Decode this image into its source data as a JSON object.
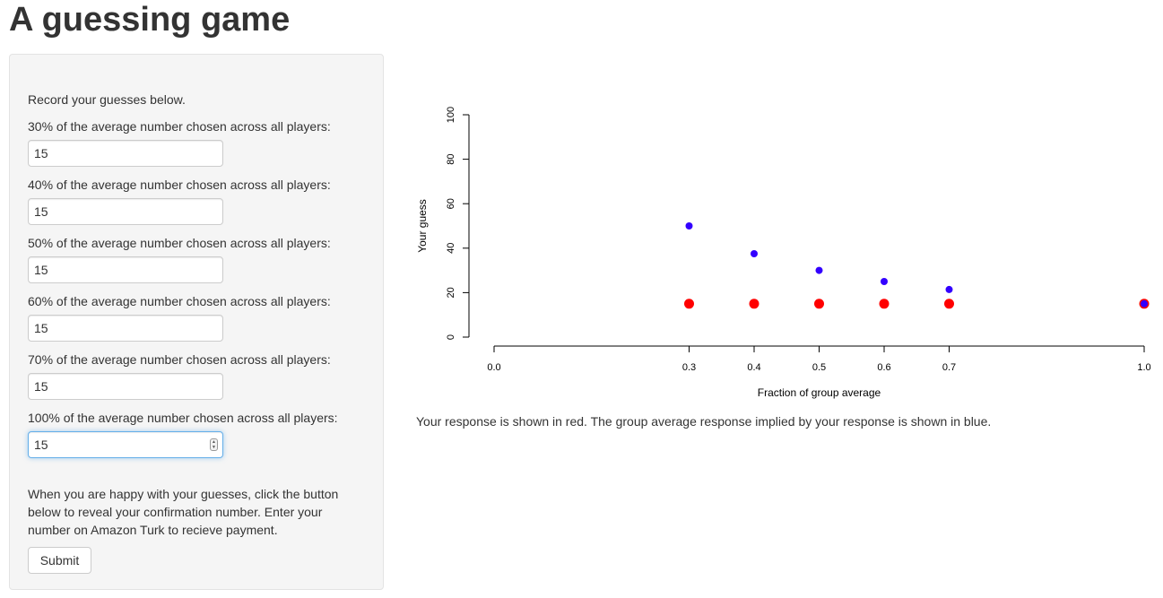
{
  "page": {
    "title": "A guessing game"
  },
  "form": {
    "intro": "Record your guesses below.",
    "fields": [
      {
        "label": "30% of the average number chosen across all players:",
        "value": "15"
      },
      {
        "label": "40% of the average number chosen across all players:",
        "value": "15"
      },
      {
        "label": "50% of the average number chosen across all players:",
        "value": "15"
      },
      {
        "label": "60% of the average number chosen across all players:",
        "value": "15"
      },
      {
        "label": "70% of the average number chosen across all players:",
        "value": "15"
      },
      {
        "label": "100% of the average number chosen across all players:",
        "value": "15"
      }
    ],
    "note": "When you are happy with your guesses, click the button below to reveal your confirmation number. Enter your number on Amazon Turk to recieve payment.",
    "submit_label": "Submit"
  },
  "plot_caption": "Your response is shown in red. The group average response implied by your response is shown in blue.",
  "chart_data": {
    "type": "scatter",
    "xlabel": "Fraction of group average",
    "ylabel": "Your guess",
    "xlim": [
      0,
      1
    ],
    "ylim": [
      0,
      100
    ],
    "x_ticks": [
      0.0,
      0.3,
      0.4,
      0.5,
      0.6,
      0.7,
      1.0
    ],
    "x_tick_labels": [
      "0.0",
      "0.3",
      "0.4",
      "0.5",
      "0.6",
      "0.7",
      "1.0"
    ],
    "y_ticks": [
      0,
      20,
      40,
      60,
      80,
      100
    ],
    "y_tick_labels": [
      "0",
      "20",
      "40",
      "60",
      "80",
      "100"
    ],
    "series": [
      {
        "color": "#ff0000",
        "x": [
          0.3,
          0.4,
          0.5,
          0.6,
          0.7,
          1.0
        ],
        "y": [
          15,
          15,
          15,
          15,
          15,
          15
        ]
      },
      {
        "color": "#3300ff",
        "x": [
          0.3,
          0.4,
          0.5,
          0.6,
          0.7,
          1.0
        ],
        "y": [
          50,
          37.5,
          30,
          25,
          21.4,
          15
        ]
      }
    ]
  }
}
